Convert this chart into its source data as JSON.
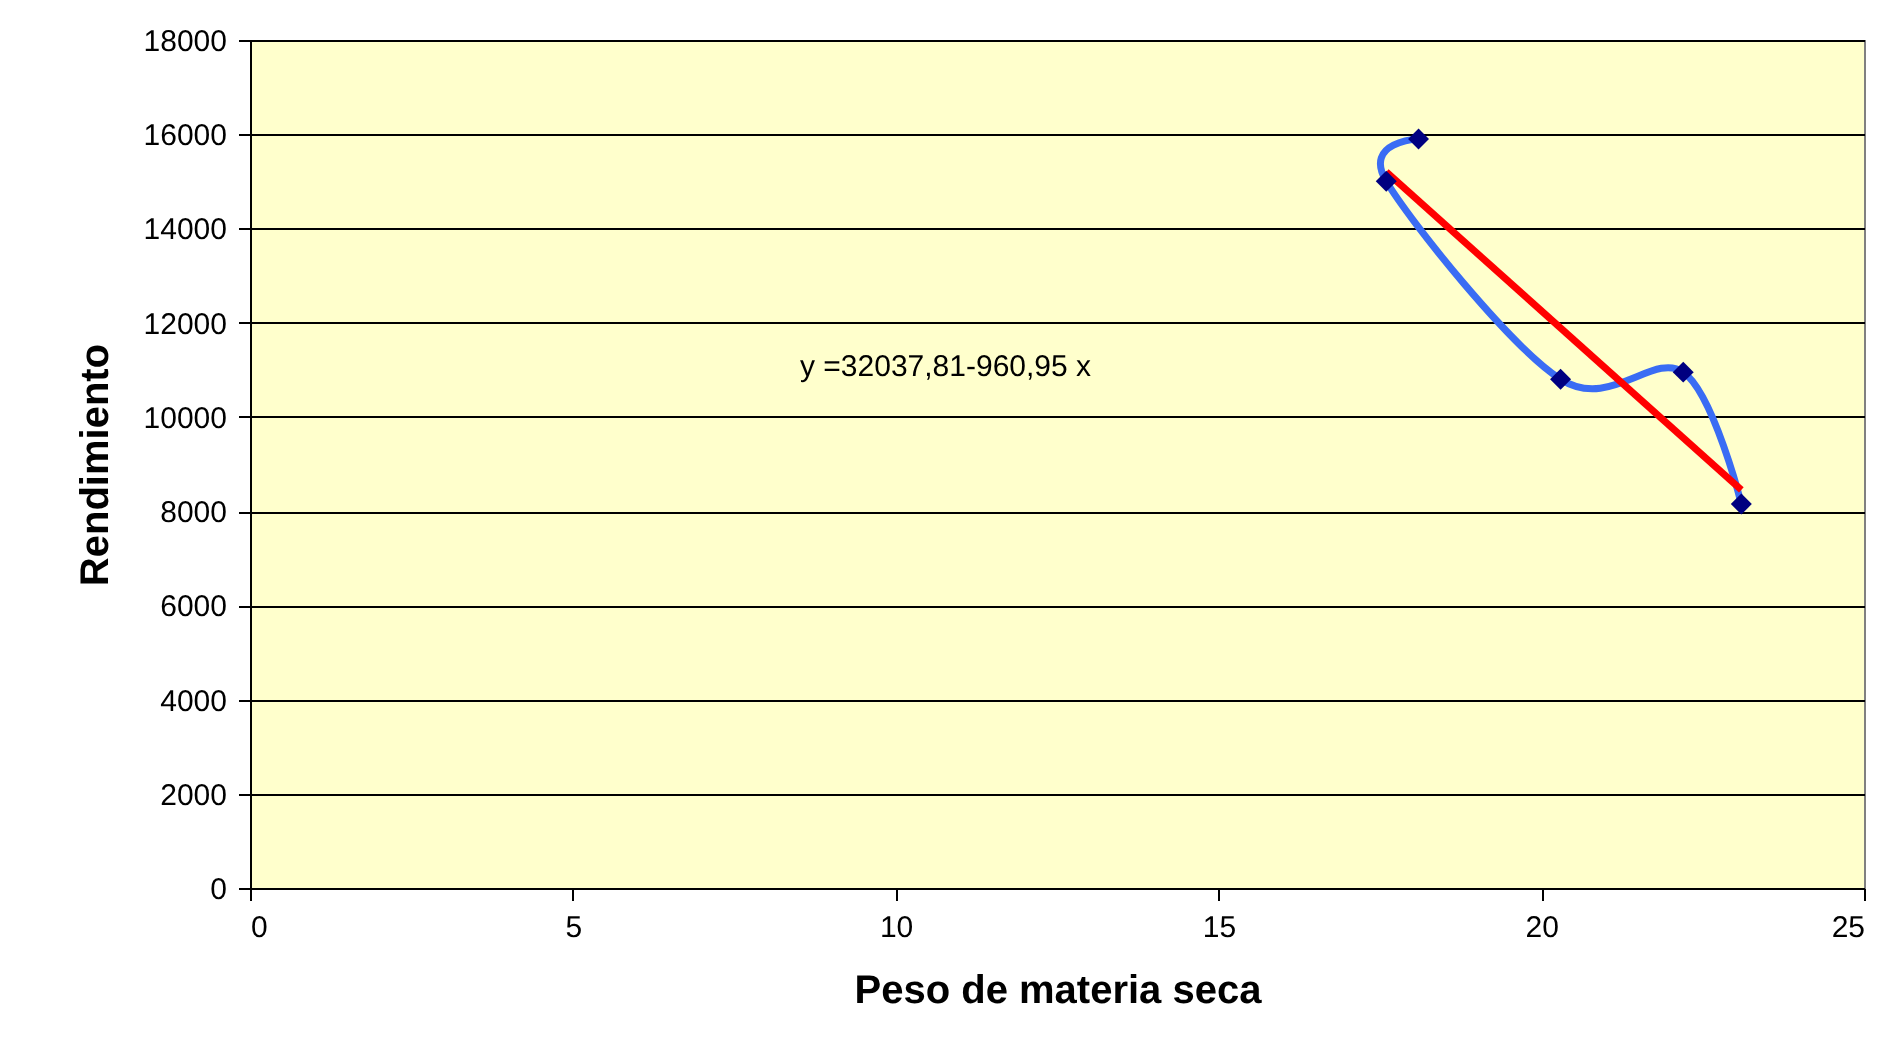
{
  "chart_data": {
    "type": "scatter",
    "xlabel": "Peso de materia seca",
    "ylabel": "Rendimiento",
    "xlim": [
      0,
      25
    ],
    "xticks": [
      0,
      5,
      10,
      15,
      20,
      25
    ],
    "ylim": [
      0,
      18000
    ],
    "yticks": [
      0,
      2000,
      4000,
      6000,
      8000,
      10000,
      12000,
      14000,
      16000,
      18000
    ],
    "grid": "y",
    "annotations": [
      "y =32037,81-960,95 x"
    ],
    "series": [
      {
        "type": "line",
        "color": "#3a6cf4",
        "marker": "none",
        "x": [
          18.1,
          17.6,
          20.3,
          22.2,
          23.1
        ],
        "values": [
          15900,
          15000,
          10800,
          10950,
          8150
        ]
      },
      {
        "type": "line",
        "color": "#ff0000",
        "marker": "none",
        "x": [
          17.6,
          23.1
        ],
        "values": [
          15200,
          8450
        ]
      },
      {
        "color": "#000080",
        "marker": "diamond",
        "x": [
          18.1,
          17.6,
          20.3,
          22.2,
          23.1
        ],
        "values": [
          15900,
          15000,
          10800,
          10950,
          8150
        ]
      }
    ]
  }
}
